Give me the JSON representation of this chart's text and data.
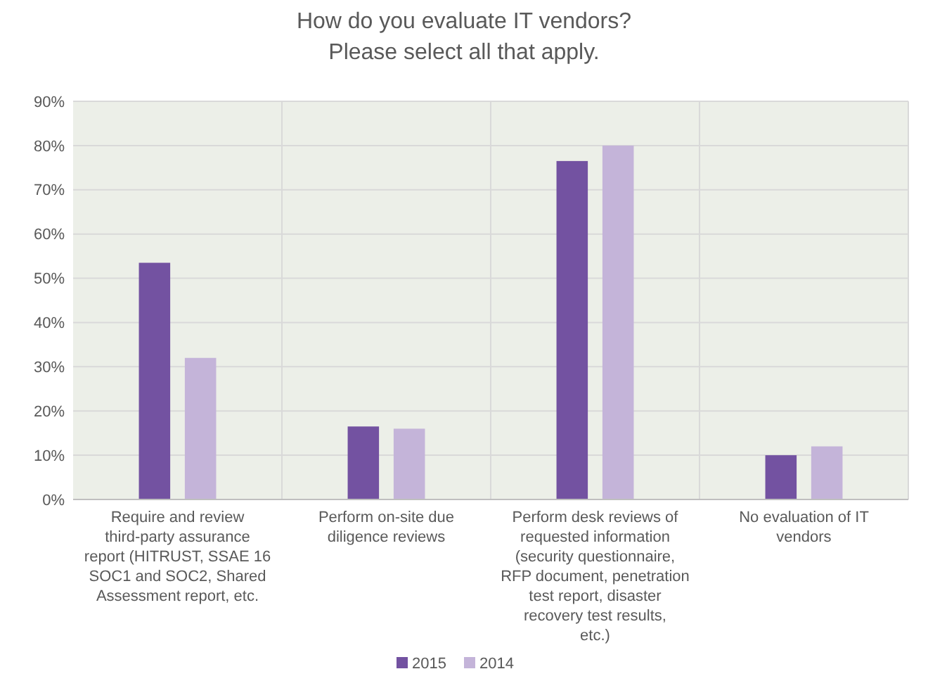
{
  "chart_data": {
    "type": "bar",
    "title": "How do you evaluate IT vendors?\nPlease select all that apply.",
    "categories": [
      "Require and review third-party assurance report (HITRUST, SSAE 16 SOC1 and SOC2, Shared Assessment report, etc.",
      "Perform on-site due diligence reviews",
      "Perform desk reviews of requested information (security questionnaire, RFP document, penetration test report, disaster recovery test results, etc.)",
      "No evaluation of IT vendors"
    ],
    "series": [
      {
        "name": "2015",
        "color": "#7352a1",
        "values": [
          53.5,
          16.5,
          76.5,
          10
        ]
      },
      {
        "name": "2014",
        "color": "#c4b4d9",
        "values": [
          32,
          16,
          80,
          12
        ]
      }
    ],
    "ylim": [
      0,
      90
    ],
    "yticks": [
      {
        "value": 0,
        "label": "0%"
      },
      {
        "value": 10,
        "label": "10%"
      },
      {
        "value": 20,
        "label": "20%"
      },
      {
        "value": 30,
        "label": "30%"
      },
      {
        "value": 40,
        "label": "40%"
      },
      {
        "value": 50,
        "label": "50%"
      },
      {
        "value": 60,
        "label": "60%"
      },
      {
        "value": 70,
        "label": "70%"
      },
      {
        "value": 80,
        "label": "80%"
      },
      {
        "value": 90,
        "label": "90%"
      }
    ],
    "grid": true,
    "legend": "bottom"
  }
}
